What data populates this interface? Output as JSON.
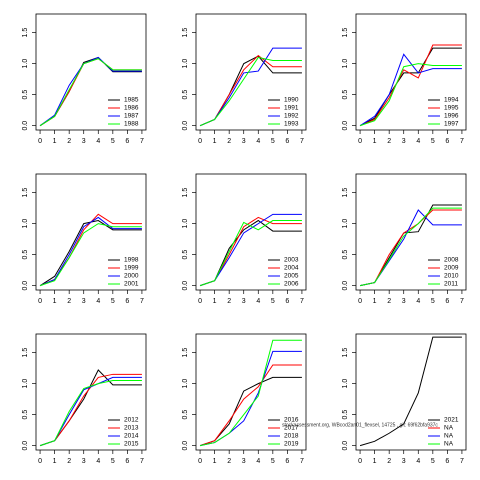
{
  "chart_data": [
    {
      "type": "line",
      "x": [
        0,
        1,
        2,
        3,
        4,
        5,
        6,
        7
      ],
      "xlim": [
        -0.28,
        7.28
      ],
      "xticks": [
        0,
        1,
        2,
        3,
        4,
        5,
        6,
        7
      ],
      "ylim": [
        -0.07,
        1.8
      ],
      "yticks": [
        {
          "value": 0,
          "label": "0.0"
        },
        0.5,
        {
          "value": 1,
          "label": "1.0"
        },
        1.5
      ],
      "legend": "bottomright",
      "series": [
        {
          "name": "1985",
          "color": "#000000",
          "values": [
            0,
            0.15,
            0.55,
            1.02,
            1.1,
            0.87,
            0.87,
            0.87
          ]
        },
        {
          "name": "1986",
          "color": "#ff0000",
          "values": [
            0,
            0.15,
            0.55,
            1.0,
            1.08,
            0.9,
            0.9,
            0.9
          ]
        },
        {
          "name": "1987",
          "color": "#0000ff",
          "values": [
            0,
            0.17,
            0.65,
            1.0,
            1.1,
            0.88,
            0.88,
            0.88
          ]
        },
        {
          "name": "1988",
          "color": "#00ff00",
          "values": [
            0,
            0.15,
            0.58,
            1.0,
            1.08,
            0.9,
            0.9,
            0.9
          ]
        }
      ]
    },
    {
      "type": "line",
      "x": [
        0,
        1,
        2,
        3,
        4,
        5,
        6,
        7
      ],
      "xlim": [
        -0.28,
        7.28
      ],
      "xticks": [
        0,
        1,
        2,
        3,
        4,
        5,
        6,
        7
      ],
      "ylim": [
        -0.07,
        1.8
      ],
      "yticks": [
        {
          "value": 0,
          "label": "0.0"
        },
        0.5,
        {
          "value": 1,
          "label": "1.0"
        },
        1.5
      ],
      "legend": "bottomright",
      "series": [
        {
          "name": "1990",
          "color": "#000000",
          "values": [
            0,
            0.1,
            0.5,
            1.0,
            1.12,
            0.85,
            0.85,
            0.85
          ]
        },
        {
          "name": "1991",
          "color": "#ff0000",
          "values": [
            0,
            0.1,
            0.5,
            0.9,
            1.13,
            0.95,
            0.95,
            0.95
          ]
        },
        {
          "name": "1992",
          "color": "#0000ff",
          "values": [
            0,
            0.1,
            0.45,
            0.85,
            0.88,
            1.25,
            1.25,
            1.25
          ]
        },
        {
          "name": "1993",
          "color": "#00ff00",
          "values": [
            0,
            0.1,
            0.4,
            0.75,
            1.1,
            1.05,
            1.05,
            1.05
          ]
        }
      ]
    },
    {
      "type": "line",
      "x": [
        0,
        1,
        2,
        3,
        4,
        5,
        6,
        7
      ],
      "xlim": [
        -0.28,
        7.28
      ],
      "xticks": [
        0,
        1,
        2,
        3,
        4,
        5,
        6,
        7
      ],
      "ylim": [
        -0.07,
        1.8
      ],
      "yticks": [
        {
          "value": 0,
          "label": "0.0"
        },
        0.5,
        {
          "value": 1,
          "label": "1.0"
        },
        1.5
      ],
      "legend": "bottomright",
      "series": [
        {
          "name": "1994",
          "color": "#000000",
          "values": [
            0,
            0.12,
            0.5,
            0.85,
            0.85,
            1.25,
            1.25,
            1.25
          ]
        },
        {
          "name": "1995",
          "color": "#ff0000",
          "values": [
            0,
            0.1,
            0.45,
            0.9,
            0.77,
            1.3,
            1.3,
            1.3
          ]
        },
        {
          "name": "1996",
          "color": "#0000ff",
          "values": [
            0,
            0.15,
            0.5,
            1.15,
            0.85,
            0.92,
            0.92,
            0.92
          ]
        },
        {
          "name": "1997",
          "color": "#00ff00",
          "values": [
            0,
            0.08,
            0.4,
            0.95,
            1.0,
            0.97,
            0.97,
            0.97
          ]
        }
      ]
    },
    {
      "type": "line",
      "x": [
        0,
        1,
        2,
        3,
        4,
        5,
        6,
        7
      ],
      "xlim": [
        -0.28,
        7.28
      ],
      "xticks": [
        0,
        1,
        2,
        3,
        4,
        5,
        6,
        7
      ],
      "ylim": [
        -0.07,
        1.8
      ],
      "yticks": [
        {
          "value": 0,
          "label": "0.0"
        },
        0.5,
        {
          "value": 1,
          "label": "1.0"
        },
        1.5
      ],
      "legend": "bottomright",
      "series": [
        {
          "name": "1998",
          "color": "#000000",
          "values": [
            0,
            0.15,
            0.55,
            1.0,
            1.05,
            0.9,
            0.9,
            0.9
          ]
        },
        {
          "name": "1999",
          "color": "#ff0000",
          "values": [
            0,
            0.1,
            0.45,
            0.9,
            1.15,
            1.0,
            1.0,
            1.0
          ]
        },
        {
          "name": "2000",
          "color": "#0000ff",
          "values": [
            0,
            0.1,
            0.5,
            0.95,
            1.1,
            0.92,
            0.92,
            0.92
          ]
        },
        {
          "name": "2001",
          "color": "#00ff00",
          "values": [
            0,
            0.08,
            0.45,
            0.85,
            1.0,
            0.95,
            0.95,
            0.95
          ]
        }
      ]
    },
    {
      "type": "line",
      "x": [
        0,
        1,
        2,
        3,
        4,
        5,
        6,
        7
      ],
      "xlim": [
        -0.28,
        7.28
      ],
      "xticks": [
        0,
        1,
        2,
        3,
        4,
        5,
        6,
        7
      ],
      "ylim": [
        -0.07,
        1.8
      ],
      "yticks": [
        {
          "value": 0,
          "label": "0.0"
        },
        0.5,
        {
          "value": 1,
          "label": "1.0"
        },
        1.5
      ],
      "legend": "bottomright",
      "series": [
        {
          "name": "2003",
          "color": "#000000",
          "values": [
            0,
            0.08,
            0.6,
            0.9,
            1.05,
            0.88,
            0.88,
            0.88
          ]
        },
        {
          "name": "2004",
          "color": "#ff0000",
          "values": [
            0,
            0.08,
            0.5,
            0.95,
            1.1,
            1.0,
            1.0,
            1.0
          ]
        },
        {
          "name": "2005",
          "color": "#0000ff",
          "values": [
            0,
            0.08,
            0.45,
            0.85,
            1.0,
            1.15,
            1.15,
            1.15
          ]
        },
        {
          "name": "2006",
          "color": "#00ff00",
          "values": [
            0,
            0.08,
            0.55,
            1.02,
            0.9,
            1.05,
            1.05,
            1.05
          ]
        }
      ]
    },
    {
      "type": "line",
      "x": [
        0,
        1,
        2,
        3,
        4,
        5,
        6,
        7
      ],
      "xlim": [
        -0.28,
        7.28
      ],
      "xticks": [
        0,
        1,
        2,
        3,
        4,
        5,
        6,
        7
      ],
      "ylim": [
        -0.07,
        1.8
      ],
      "yticks": [
        {
          "value": 0,
          "label": "0.0"
        },
        0.5,
        {
          "value": 1,
          "label": "1.0"
        },
        1.5
      ],
      "legend": "bottomright",
      "series": [
        {
          "name": "2008",
          "color": "#000000",
          "values": [
            0,
            0.05,
            0.45,
            0.85,
            0.87,
            1.3,
            1.3,
            1.3
          ]
        },
        {
          "name": "2009",
          "color": "#ff0000",
          "values": [
            0,
            0.05,
            0.5,
            0.85,
            1.0,
            1.22,
            1.22,
            1.22
          ]
        },
        {
          "name": "2010",
          "color": "#0000ff",
          "values": [
            0,
            0.05,
            0.4,
            0.75,
            1.22,
            0.98,
            0.98,
            0.98
          ]
        },
        {
          "name": "2011",
          "color": "#00ff00",
          "values": [
            0,
            0.05,
            0.42,
            0.8,
            1.0,
            1.25,
            1.25,
            1.25
          ]
        }
      ]
    },
    {
      "type": "line",
      "x": [
        0,
        1,
        2,
        3,
        4,
        5,
        6,
        7
      ],
      "xlim": [
        -0.28,
        7.28
      ],
      "xticks": [
        0,
        1,
        2,
        3,
        4,
        5,
        6,
        7
      ],
      "ylim": [
        -0.07,
        1.8
      ],
      "yticks": [
        {
          "value": 0,
          "label": "0.0"
        },
        0.5,
        {
          "value": 1,
          "label": "1.0"
        },
        1.5
      ],
      "legend": "bottomright",
      "series": [
        {
          "name": "2012",
          "color": "#000000",
          "values": [
            0,
            0.08,
            0.4,
            0.75,
            1.22,
            0.98,
            0.98,
            0.98
          ]
        },
        {
          "name": "2013",
          "color": "#ff0000",
          "values": [
            0,
            0.08,
            0.4,
            0.8,
            1.1,
            1.15,
            1.15,
            1.15
          ]
        },
        {
          "name": "2014",
          "color": "#0000ff",
          "values": [
            0,
            0.08,
            0.5,
            0.9,
            1.0,
            1.1,
            1.1,
            1.1
          ]
        },
        {
          "name": "2015",
          "color": "#00ff00",
          "values": [
            0,
            0.08,
            0.55,
            0.92,
            1.0,
            1.05,
            1.05,
            1.05
          ]
        }
      ]
    },
    {
      "type": "line",
      "x": [
        0,
        1,
        2,
        3,
        4,
        5,
        6,
        7
      ],
      "xlim": [
        -0.28,
        7.28
      ],
      "xticks": [
        0,
        1,
        2,
        3,
        4,
        5,
        6,
        7
      ],
      "ylim": [
        -0.07,
        1.8
      ],
      "yticks": [
        {
          "value": 0,
          "label": "0.0"
        },
        0.5,
        {
          "value": 1,
          "label": "1.0"
        },
        1.5
      ],
      "legend": "bottomright",
      "annotation": "stockassessment.org, WBcod2an01_flexsel, 14725 , git: 69f62bfa937c",
      "series": [
        {
          "name": "2016",
          "color": "#000000",
          "values": [
            0,
            0.08,
            0.35,
            0.88,
            1.0,
            1.1,
            1.1,
            1.1
          ]
        },
        {
          "name": "2017",
          "color": "#ff0000",
          "values": [
            0,
            0.08,
            0.4,
            0.75,
            0.95,
            1.3,
            1.3,
            1.3
          ]
        },
        {
          "name": "2018",
          "color": "#0000ff",
          "values": [
            0,
            0.05,
            0.2,
            0.4,
            0.85,
            1.52,
            1.52,
            1.52
          ]
        },
        {
          "name": "2019",
          "color": "#00ff00",
          "values": [
            0,
            0.05,
            0.2,
            0.5,
            0.8,
            1.7,
            1.7,
            1.7
          ]
        }
      ]
    },
    {
      "type": "line",
      "x": [
        0,
        1,
        2,
        3,
        4,
        5,
        6,
        7
      ],
      "xlim": [
        -0.28,
        7.28
      ],
      "xticks": [
        0,
        1,
        2,
        3,
        4,
        5,
        6,
        7
      ],
      "ylim": [
        -0.07,
        1.8
      ],
      "yticks": [
        {
          "value": 0,
          "label": "0.0"
        },
        0.5,
        {
          "value": 1,
          "label": "1.0"
        },
        1.5
      ],
      "legend": "bottomright",
      "series": [
        {
          "name": "2021",
          "color": "#000000",
          "values": [
            0,
            0.07,
            0.2,
            0.35,
            0.85,
            1.75,
            1.75,
            1.75
          ]
        },
        {
          "name": "NA",
          "color": "#ff0000",
          "values": [
            null,
            null,
            null,
            null,
            null,
            null,
            null,
            null
          ]
        },
        {
          "name": "NA",
          "color": "#0000ff",
          "values": [
            null,
            null,
            null,
            null,
            null,
            null,
            null,
            null
          ]
        },
        {
          "name": "NA",
          "color": "#00ff00",
          "values": [
            null,
            null,
            null,
            null,
            null,
            null,
            null,
            null
          ]
        }
      ]
    }
  ]
}
